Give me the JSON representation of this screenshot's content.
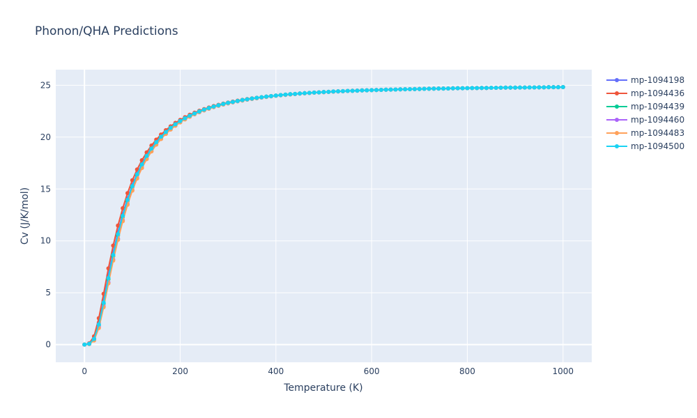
{
  "chart_data": {
    "type": "line",
    "title": "Phonon/QHA Predictions",
    "xlabel": "Temperature (K)",
    "ylabel": "Cv (J/K/mol)",
    "xlim": [
      -60,
      1060
    ],
    "ylim": [
      -1.7,
      26.5
    ],
    "x_ticks": [
      0,
      200,
      400,
      600,
      800,
      1000
    ],
    "y_ticks": [
      0,
      5,
      10,
      15,
      20,
      25
    ],
    "grid": true,
    "legend_position": "right",
    "x": [
      0,
      10,
      20,
      30,
      40,
      50,
      60,
      70,
      80,
      90,
      100,
      110,
      120,
      130,
      140,
      150,
      160,
      170,
      180,
      190,
      200,
      210,
      220,
      230,
      240,
      250,
      260,
      270,
      280,
      290,
      300,
      310,
      320,
      330,
      340,
      350,
      360,
      370,
      380,
      390,
      400,
      410,
      420,
      430,
      440,
      450,
      460,
      470,
      480,
      490,
      500,
      510,
      520,
      530,
      540,
      550,
      560,
      570,
      580,
      590,
      600,
      610,
      620,
      630,
      640,
      650,
      660,
      670,
      680,
      690,
      700,
      710,
      720,
      730,
      740,
      750,
      760,
      770,
      780,
      790,
      800,
      810,
      820,
      830,
      840,
      850,
      860,
      870,
      880,
      890,
      900,
      910,
      920,
      930,
      940,
      950,
      960,
      970,
      980,
      990,
      1000
    ],
    "series": [
      {
        "name": "mp-1094198",
        "color": "#636efa",
        "values": [
          0.0,
          0.09,
          0.61,
          2.11,
          4.28,
          6.68,
          8.89,
          10.85,
          12.58,
          14.08,
          15.38,
          16.48,
          17.43,
          18.24,
          18.94,
          19.55,
          20.07,
          20.52,
          20.92,
          21.27,
          21.58,
          21.85,
          22.09,
          22.3,
          22.49,
          22.67,
          22.82,
          22.96,
          23.09,
          23.2,
          23.31,
          23.41,
          23.49,
          23.58,
          23.65,
          23.72,
          23.78,
          23.84,
          23.9,
          23.95,
          24.0,
          24.05,
          24.09,
          24.13,
          24.16,
          24.2,
          24.23,
          24.26,
          24.29,
          24.31,
          24.34,
          24.36,
          24.39,
          24.41,
          24.43,
          24.45,
          24.46,
          24.48,
          24.5,
          24.51,
          24.53,
          24.54,
          24.55,
          24.57,
          24.58,
          24.59,
          24.6,
          24.61,
          24.62,
          24.63,
          24.64,
          24.65,
          24.66,
          24.67,
          24.68,
          24.68,
          24.69,
          24.7,
          24.71,
          24.71,
          24.72,
          24.73,
          24.73,
          24.74,
          24.74,
          24.75,
          24.75,
          24.76,
          24.77,
          24.77,
          24.77,
          24.78,
          24.78,
          24.79,
          24.79,
          24.8,
          24.8,
          24.81,
          24.81,
          24.81,
          24.82
        ]
      },
      {
        "name": "mp-1094436",
        "color": "#ef553b",
        "values": [
          0.0,
          0.13,
          0.8,
          2.55,
          4.9,
          7.35,
          9.55,
          11.48,
          13.15,
          14.6,
          15.84,
          16.88,
          17.77,
          18.53,
          19.19,
          19.76,
          20.25,
          20.67,
          21.04,
          21.37,
          21.66,
          21.92,
          22.15,
          22.35,
          22.54,
          22.7,
          22.85,
          22.99,
          23.11,
          23.23,
          23.33,
          23.42,
          23.51,
          23.59,
          23.66,
          23.73,
          23.79,
          23.85,
          23.9,
          23.96,
          24.0,
          24.05,
          24.09,
          24.13,
          24.16,
          24.2,
          24.23,
          24.26,
          24.29,
          24.31,
          24.34,
          24.36,
          24.39,
          24.41,
          24.43,
          24.45,
          24.46,
          24.48,
          24.5,
          24.51,
          24.53,
          24.54,
          24.55,
          24.57,
          24.58,
          24.59,
          24.6,
          24.61,
          24.62,
          24.63,
          24.64,
          24.65,
          24.66,
          24.67,
          24.68,
          24.68,
          24.69,
          24.7,
          24.71,
          24.71,
          24.72,
          24.73,
          24.73,
          24.74,
          24.74,
          24.75,
          24.75,
          24.76,
          24.77,
          24.77,
          24.77,
          24.78,
          24.78,
          24.79,
          24.79,
          24.8,
          24.8,
          24.81,
          24.81,
          24.81,
          24.82
        ]
      },
      {
        "name": "mp-1094439",
        "color": "#00cc96",
        "values": [
          0.0,
          0.07,
          0.52,
          1.88,
          3.95,
          6.3,
          8.52,
          10.52,
          12.29,
          13.83,
          15.16,
          16.3,
          17.28,
          18.11,
          18.83,
          19.45,
          19.99,
          20.45,
          20.86,
          21.22,
          21.53,
          21.81,
          22.05,
          22.27,
          22.46,
          22.64,
          22.8,
          22.94,
          23.07,
          23.19,
          23.29,
          23.39,
          23.48,
          23.57,
          23.64,
          23.71,
          23.78,
          23.84,
          23.9,
          23.95,
          24.0,
          24.05,
          24.09,
          24.13,
          24.16,
          24.2,
          24.23,
          24.26,
          24.29,
          24.31,
          24.34,
          24.36,
          24.39,
          24.41,
          24.43,
          24.45,
          24.46,
          24.48,
          24.5,
          24.51,
          24.53,
          24.54,
          24.55,
          24.57,
          24.58,
          24.59,
          24.6,
          24.61,
          24.62,
          24.63,
          24.64,
          24.65,
          24.66,
          24.67,
          24.68,
          24.68,
          24.69,
          24.7,
          24.71,
          24.71,
          24.72,
          24.73,
          24.73,
          24.74,
          24.74,
          24.75,
          24.75,
          24.76,
          24.77,
          24.77,
          24.77,
          24.78,
          24.78,
          24.79,
          24.79,
          24.8,
          24.8,
          24.81,
          24.81,
          24.81,
          24.82
        ]
      },
      {
        "name": "mp-1094460",
        "color": "#ab63fa",
        "values": [
          0.0,
          0.06,
          0.45,
          1.7,
          3.7,
          6.0,
          8.2,
          10.2,
          11.98,
          13.55,
          14.9,
          16.06,
          17.06,
          17.91,
          18.65,
          19.29,
          19.84,
          20.32,
          20.74,
          21.11,
          21.43,
          21.72,
          21.97,
          22.2,
          22.4,
          22.58,
          22.74,
          22.89,
          23.02,
          23.14,
          23.25,
          23.35,
          23.45,
          23.53,
          23.61,
          23.68,
          23.75,
          23.81,
          23.87,
          23.93,
          23.98,
          24.03,
          24.07,
          24.11,
          24.15,
          24.19,
          24.22,
          24.25,
          24.28,
          24.31,
          24.33,
          24.36,
          24.38,
          24.4,
          24.42,
          24.44,
          24.46,
          24.48,
          24.5,
          24.51,
          24.53,
          24.54,
          24.55,
          24.57,
          24.58,
          24.59,
          24.6,
          24.61,
          24.62,
          24.63,
          24.64,
          24.65,
          24.66,
          24.67,
          24.68,
          24.68,
          24.69,
          24.7,
          24.71,
          24.71,
          24.72,
          24.73,
          24.73,
          24.74,
          24.74,
          24.75,
          24.75,
          24.76,
          24.77,
          24.77,
          24.77,
          24.78,
          24.78,
          24.79,
          24.79,
          24.8,
          24.8,
          24.81,
          24.81,
          24.81,
          24.82
        ]
      },
      {
        "name": "mp-1094483",
        "color": "#ffa15a",
        "values": [
          0.0,
          0.05,
          0.4,
          1.6,
          3.6,
          5.9,
          8.1,
          10.1,
          11.9,
          13.48,
          14.84,
          16.01,
          17.02,
          17.88,
          18.62,
          19.27,
          19.82,
          20.31,
          20.73,
          21.1,
          21.42,
          21.71,
          21.97,
          22.2,
          22.4,
          22.58,
          22.74,
          22.89,
          23.02,
          23.14,
          23.25,
          23.35,
          23.45,
          23.53,
          23.61,
          23.68,
          23.75,
          23.81,
          23.87,
          23.93,
          23.98,
          24.03,
          24.07,
          24.11,
          24.15,
          24.19,
          24.22,
          24.25,
          24.28,
          24.31,
          24.33,
          24.36,
          24.38,
          24.4,
          24.42,
          24.44,
          24.46,
          24.48,
          24.5,
          24.51,
          24.53,
          24.54,
          24.55,
          24.57,
          24.58,
          24.59,
          24.6,
          24.61,
          24.62,
          24.63,
          24.64,
          24.65,
          24.66,
          24.67,
          24.68,
          24.68,
          24.69,
          24.7,
          24.71,
          24.71,
          24.72,
          24.73,
          24.73,
          24.74,
          24.74,
          24.75,
          24.75,
          24.76,
          24.77,
          24.77,
          24.77,
          24.78,
          24.78,
          24.79,
          24.79,
          24.8,
          24.8,
          24.81,
          24.81,
          24.81,
          24.82
        ]
      },
      {
        "name": "mp-1094500",
        "color": "#19d3f3",
        "values": [
          0.0,
          0.08,
          0.55,
          1.95,
          4.05,
          6.42,
          8.65,
          10.65,
          12.42,
          13.96,
          15.28,
          16.41,
          17.37,
          18.19,
          18.9,
          19.51,
          20.04,
          20.49,
          20.89,
          21.24,
          21.55,
          21.82,
          22.06,
          22.28,
          22.47,
          22.65,
          22.8,
          22.94,
          23.07,
          23.19,
          23.3,
          23.39,
          23.48,
          23.57,
          23.64,
          23.71,
          23.78,
          23.84,
          23.9,
          23.95,
          24.0,
          24.05,
          24.09,
          24.13,
          24.16,
          24.2,
          24.23,
          24.26,
          24.29,
          24.31,
          24.34,
          24.36,
          24.39,
          24.41,
          24.43,
          24.45,
          24.46,
          24.48,
          24.5,
          24.51,
          24.53,
          24.54,
          24.55,
          24.57,
          24.58,
          24.59,
          24.6,
          24.61,
          24.62,
          24.63,
          24.64,
          24.65,
          24.66,
          24.67,
          24.68,
          24.68,
          24.69,
          24.7,
          24.71,
          24.71,
          24.72,
          24.73,
          24.73,
          24.74,
          24.74,
          24.75,
          24.75,
          24.76,
          24.77,
          24.77,
          24.77,
          24.78,
          24.78,
          24.79,
          24.79,
          24.8,
          24.8,
          24.81,
          24.81,
          24.81,
          24.82
        ]
      }
    ]
  }
}
